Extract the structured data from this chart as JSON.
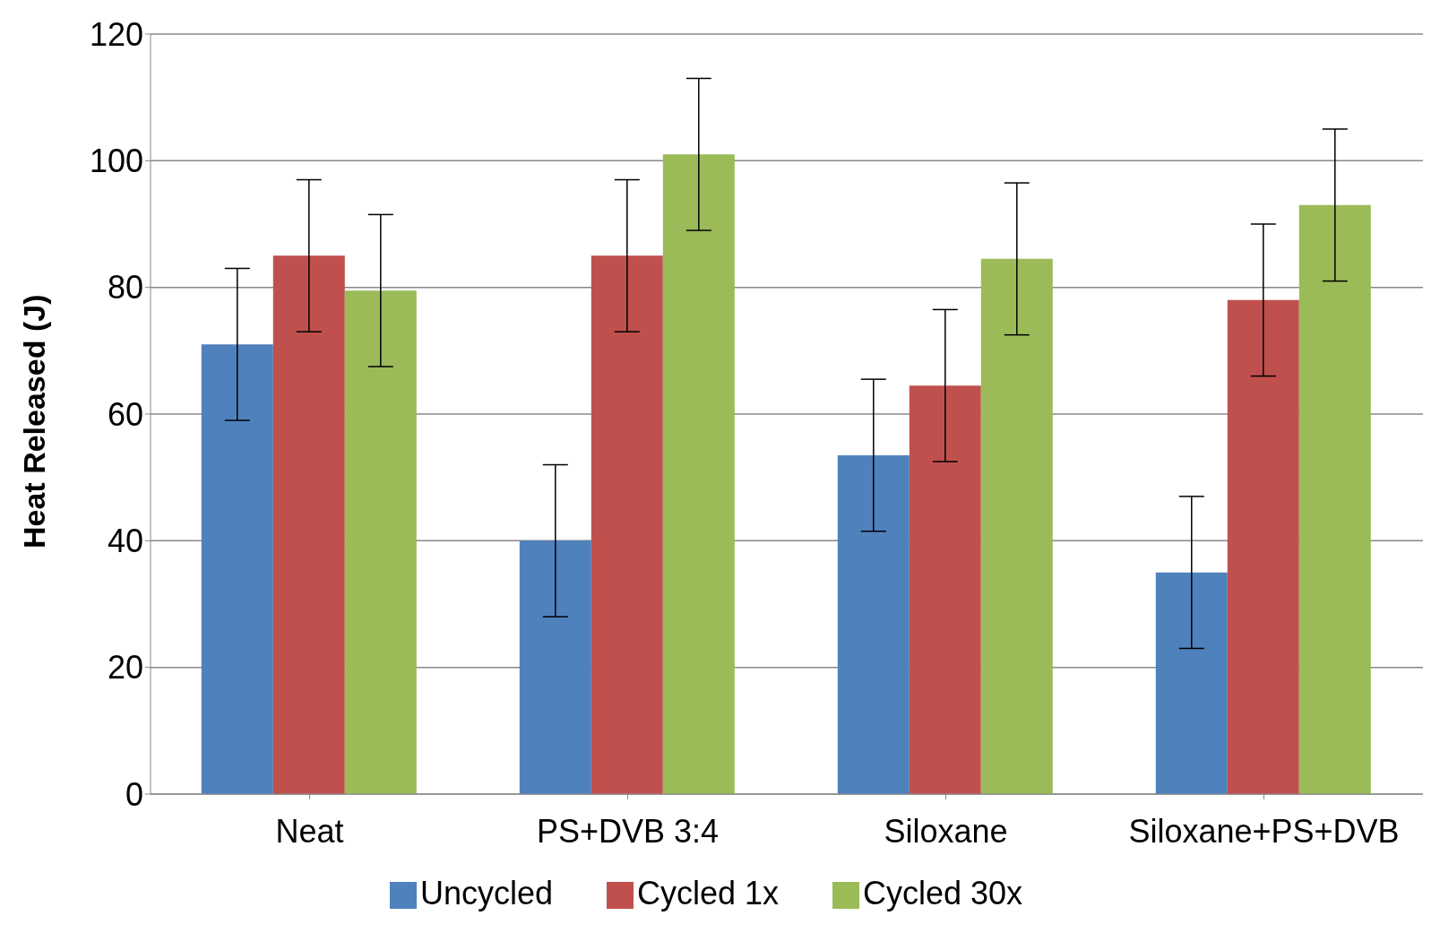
{
  "chart_data": {
    "type": "bar",
    "ylabel": "Heat Released (J)",
    "categories": [
      "Neat",
      "PS+DVB 3:4",
      "Siloxane",
      "Siloxane+PS+DVB"
    ],
    "series": [
      {
        "name": "Uncycled",
        "color": "#4f81bd",
        "values": [
          71,
          40,
          53.5,
          35
        ],
        "errors": [
          12,
          12,
          12,
          12
        ]
      },
      {
        "name": "Cycled 1x",
        "color": "#c0504d",
        "values": [
          85,
          85,
          64.5,
          78
        ],
        "errors": [
          12,
          12,
          12,
          12
        ]
      },
      {
        "name": "Cycled 30x",
        "color": "#9bbb59",
        "values": [
          79.5,
          101,
          84.5,
          93
        ],
        "errors": [
          12,
          12,
          12,
          12
        ]
      }
    ],
    "ylim": [
      0,
      120
    ],
    "yticks": [
      0,
      20,
      40,
      60,
      80,
      100,
      120
    ],
    "grid": "y",
    "legend": "bottom"
  }
}
